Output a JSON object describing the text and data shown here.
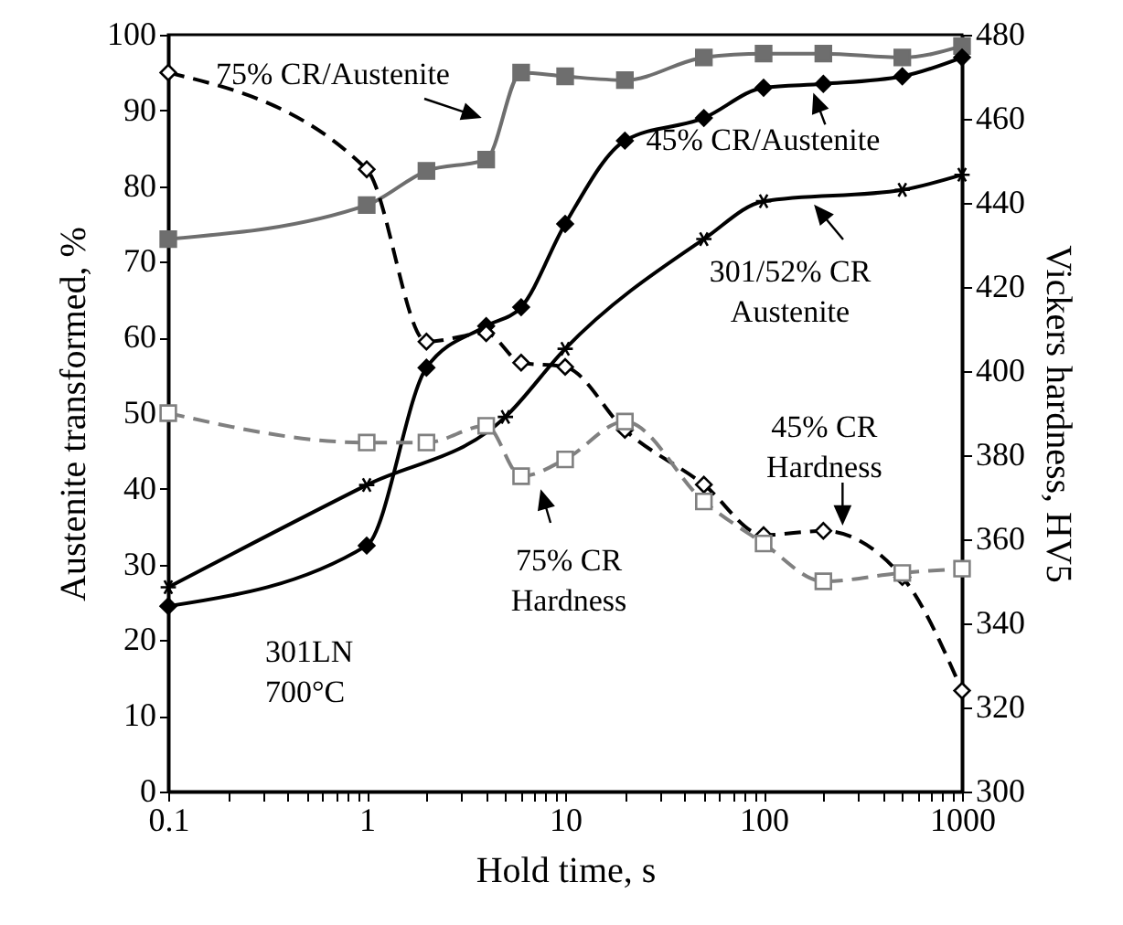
{
  "chart_data": {
    "type": "line",
    "xlabel": "Hold time, s",
    "ylabel": "Austenite transformed, %",
    "y2label": "Vickers hardness, HV5",
    "log": "x",
    "grid": false,
    "xlim": [
      0.1,
      1000
    ],
    "xticks": [
      {
        "value": 0.1,
        "label": "0.1"
      },
      {
        "value": 0.2,
        "label": null
      },
      {
        "value": 0.3,
        "label": null
      },
      {
        "value": 0.4,
        "label": null
      },
      {
        "value": 0.5,
        "label": null
      },
      {
        "value": 0.6,
        "label": null
      },
      {
        "value": 0.7,
        "label": null
      },
      {
        "value": 0.8,
        "label": null
      },
      {
        "value": 0.9,
        "label": null
      },
      1,
      {
        "value": 2,
        "label": null
      },
      {
        "value": 3,
        "label": null
      },
      {
        "value": 4,
        "label": null
      },
      {
        "value": 5,
        "label": null
      },
      {
        "value": 6,
        "label": null
      },
      {
        "value": 7,
        "label": null
      },
      {
        "value": 8,
        "label": null
      },
      {
        "value": 9,
        "label": null
      },
      10,
      {
        "value": 20,
        "label": null
      },
      {
        "value": 30,
        "label": null
      },
      {
        "value": 40,
        "label": null
      },
      {
        "value": 50,
        "label": null
      },
      {
        "value": 60,
        "label": null
      },
      {
        "value": 70,
        "label": null
      },
      {
        "value": 80,
        "label": null
      },
      {
        "value": 90,
        "label": null
      },
      100,
      {
        "value": 200,
        "label": null
      },
      {
        "value": 300,
        "label": null
      },
      {
        "value": 400,
        "label": null
      },
      {
        "value": 500,
        "label": null
      },
      {
        "value": 600,
        "label": null
      },
      {
        "value": 700,
        "label": null
      },
      {
        "value": 800,
        "label": null
      },
      {
        "value": 900,
        "label": null
      },
      1000
    ],
    "ylim": [
      0,
      100
    ],
    "yticks": [
      0,
      10,
      20,
      30,
      40,
      50,
      60,
      70,
      80,
      90,
      100
    ],
    "y2lim": [
      300,
      480
    ],
    "y2ticks": [
      300,
      320,
      340,
      360,
      380,
      400,
      420,
      440,
      460,
      480
    ],
    "series": [
      {
        "color": "#6e6e6e",
        "marker": "square",
        "line_style": "solid",
        "x": [
          0.1,
          1,
          2,
          4,
          6,
          10,
          20,
          50,
          100,
          200,
          500,
          1000
        ],
        "values": [
          73,
          77.5,
          82,
          83.5,
          95,
          94.5,
          94,
          97,
          97.5,
          97.5,
          97,
          98.5
        ]
      },
      {
        "color": "#000000",
        "marker": "diamond",
        "line_style": "solid",
        "x": [
          0.1,
          1,
          2,
          4,
          6,
          10,
          20,
          50,
          100,
          200,
          500,
          1000
        ],
        "values": [
          24.5,
          32.5,
          56,
          61.5,
          64,
          75,
          86,
          89,
          93,
          93.5,
          94.5,
          97
        ]
      },
      {
        "color": "#000000",
        "marker": "cross",
        "line_style": "solid",
        "x": [
          0.1,
          1,
          5,
          10,
          50,
          100,
          500,
          1000
        ],
        "values": [
          27,
          40.5,
          49.5,
          58.5,
          73,
          78,
          79.5,
          81.5
        ]
      },
      {
        "color": "#000000",
        "marker": "diamond",
        "line_style": "dashed",
        "axis": "y2",
        "x": [
          0.1,
          1,
          2,
          4,
          6,
          10,
          20,
          50,
          100,
          200,
          500,
          1000
        ],
        "values": [
          471,
          448,
          407,
          409,
          402,
          401,
          386,
          373,
          361,
          362,
          351,
          324
        ]
      },
      {
        "color": "#808080",
        "marker": "square",
        "line_style": "dashed",
        "axis": "y2",
        "x": [
          0.1,
          1,
          2,
          4,
          6,
          10,
          20,
          50,
          100,
          200,
          500,
          1000
        ],
        "values": [
          390,
          383,
          383,
          387,
          375,
          379,
          388,
          369,
          359,
          350,
          352,
          353
        ]
      }
    ],
    "annotations": [
      "75% CR/Austenite",
      {
        "text": "45% CR/Austenite",
        "x": 180,
        "y": 92
      },
      "301/52% CR\nAustenite",
      {
        "text": "45% CR\nHardness",
        "x": 250,
        "y": 35.5
      },
      "75% CR\nHardness",
      "301LN\n700°C"
    ]
  }
}
